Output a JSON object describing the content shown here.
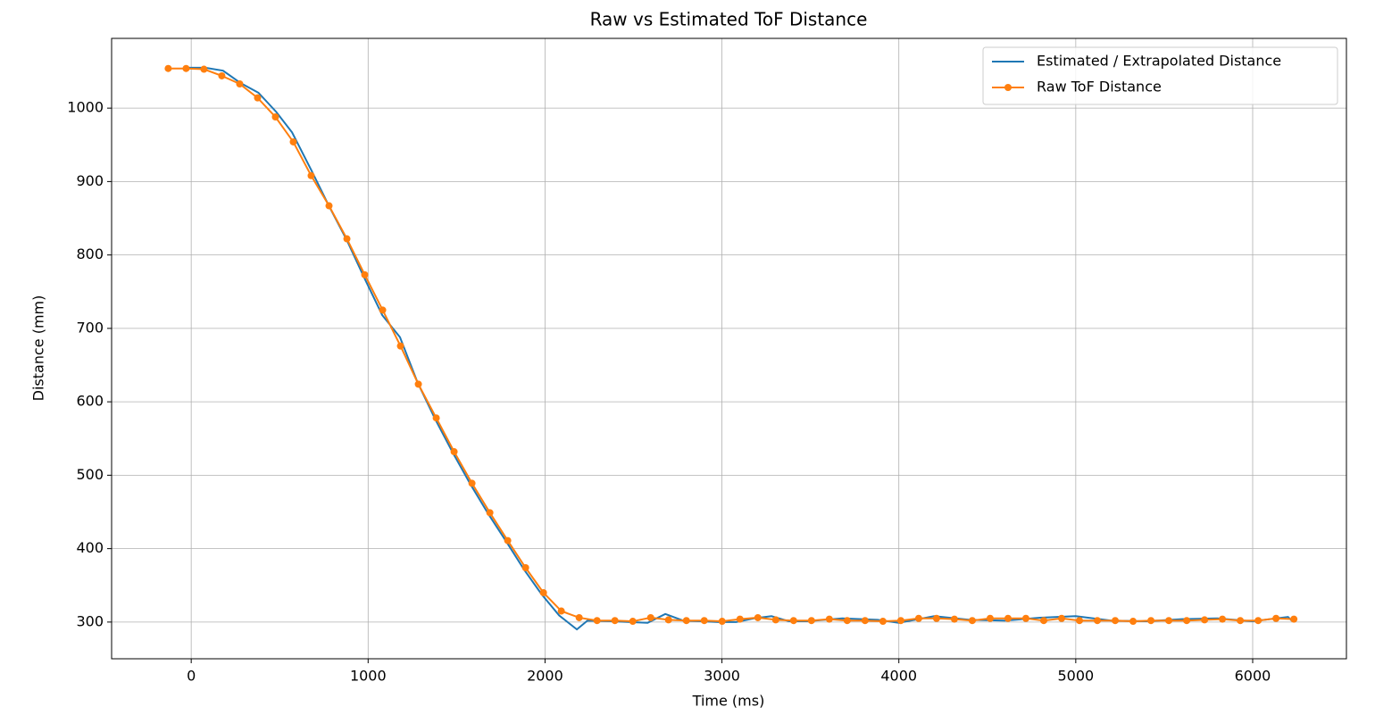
{
  "chart_data": {
    "type": "line",
    "title": "Raw vs Estimated ToF Distance",
    "x_label": "Time (ms)",
    "y_label": "Distance (mm)",
    "xlim": [
      -450,
      6530
    ],
    "ylim": [
      250,
      1095
    ],
    "xticks": [
      0,
      1000,
      2000,
      3000,
      4000,
      5000,
      6000
    ],
    "yticks": [
      300,
      400,
      500,
      600,
      700,
      800,
      900,
      1000
    ],
    "grid": true,
    "legend_position": "upper-right",
    "series": [
      {
        "name": "Estimated / Extrapolated Distance",
        "color": "#1f77b4",
        "marker": false,
        "x": [
          -30,
          80,
          180,
          280,
          380,
          480,
          570,
          680,
          780,
          880,
          980,
          1080,
          1180,
          1280,
          1380,
          1480,
          1580,
          1680,
          1780,
          1880,
          1980,
          2080,
          2180,
          2240,
          2380,
          2480,
          2580,
          2680,
          2780,
          2880,
          2980,
          3080,
          3180,
          3280,
          3380,
          3480,
          3680,
          3880,
          4000,
          4200,
          4400,
          4600,
          4800,
          5000,
          5200,
          5400,
          5600,
          5800,
          6000,
          6200,
          6220
        ],
        "values": [
          1055,
          1055,
          1051,
          1034,
          1021,
          995,
          967,
          915,
          866,
          820,
          768,
          718,
          688,
          626,
          576,
          530,
          487,
          447,
          410,
          372,
          338,
          309,
          290,
          302,
          301,
          300,
          299,
          311,
          302,
          301,
          300,
          300,
          305,
          308,
          301,
          301,
          305,
          303,
          299,
          308,
          303,
          302,
          306,
          308,
          302,
          301,
          304,
          305,
          301,
          307,
          302
        ]
      },
      {
        "name": "Raw ToF Distance",
        "color": "#ff7f0e",
        "marker": true,
        "x": [
          -130,
          -29,
          72,
          173,
          274,
          375,
          476,
          577,
          678,
          779,
          880,
          981,
          1082,
          1183,
          1284,
          1385,
          1486,
          1587,
          1688,
          1789,
          1890,
          1991,
          2092,
          2193,
          2294,
          2395,
          2496,
          2597,
          2698,
          2799,
          2900,
          3001,
          3102,
          3203,
          3304,
          3405,
          3506,
          3607,
          3708,
          3809,
          3910,
          4011,
          4112,
          4213,
          4314,
          4415,
          4516,
          4617,
          4718,
          4819,
          4920,
          5021,
          5122,
          5223,
          5324,
          5425,
          5526,
          5627,
          5728,
          5829,
          5930,
          6031,
          6132,
          6233
        ],
        "values": [
          1054,
          1054,
          1053,
          1044,
          1033,
          1014,
          988,
          954,
          908,
          867,
          822,
          773,
          725,
          676,
          624,
          578,
          532,
          489,
          449,
          411,
          374,
          340,
          315,
          306,
          302,
          302,
          301,
          306,
          303,
          302,
          302,
          301,
          304,
          306,
          303,
          302,
          302,
          304,
          302,
          302,
          301,
          302,
          305,
          305,
          304,
          302,
          305,
          305,
          305,
          302,
          305,
          302,
          302,
          302,
          301,
          302,
          302,
          302,
          303,
          304,
          302,
          302,
          305,
          304
        ]
      }
    ]
  }
}
